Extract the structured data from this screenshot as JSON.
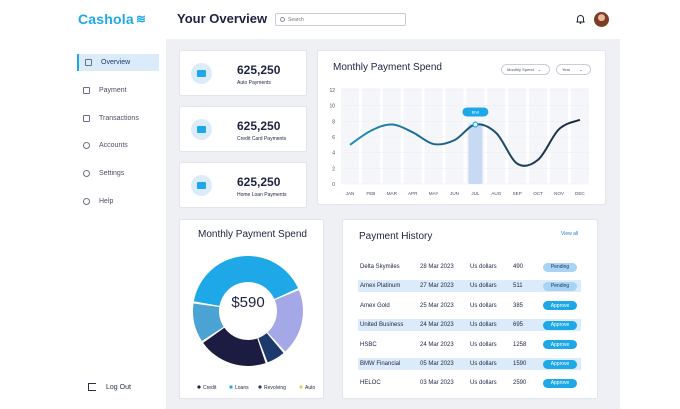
{
  "brand": {
    "name": "Cashola"
  },
  "header": {
    "title": "Your Overview",
    "search_placeholder": "Search"
  },
  "sidebar": {
    "items": [
      {
        "label": "Overview",
        "icon": "overview-icon",
        "active": true
      },
      {
        "label": "Payment",
        "icon": "payment-icon"
      },
      {
        "label": "Transactions",
        "icon": "transactions-icon"
      },
      {
        "label": "Accounts",
        "icon": "accounts-icon"
      },
      {
        "label": "Settings",
        "icon": "settings-icon"
      },
      {
        "label": "Help",
        "icon": "help-icon"
      }
    ],
    "logout": "Log Out"
  },
  "stats": [
    {
      "value": "625,250",
      "label": "Auto Payments"
    },
    {
      "value": "625,250",
      "label": "Credit Card Payments"
    },
    {
      "value": "625,250",
      "label": "Home Loan Payments"
    }
  ],
  "line_chart": {
    "title": "Monthly Payment Spend",
    "filter_1": "Monthly Spend",
    "filter_2": "Year",
    "tooltip": "Bhd"
  },
  "donut": {
    "title": "Monthly Payment Spend",
    "center_value": "$590"
  },
  "history": {
    "title": "Payment History",
    "view_all": "View all",
    "rows": [
      {
        "name": "Delta Skymiles",
        "date": "28 Mar 2023",
        "currency": "Us dollars",
        "amount": "490",
        "status": "Pending"
      },
      {
        "name": "Amex Platinum",
        "date": "27 Mar 2023",
        "currency": "Us dollars",
        "amount": "511",
        "status": "Pending"
      },
      {
        "name": "Amex Gold",
        "date": "25 Mar 2023",
        "currency": "Us dollars",
        "amount": "385",
        "status": "Approve"
      },
      {
        "name": "United Business",
        "date": "24 Mar 2023",
        "currency": "Us dollars",
        "amount": "695",
        "status": "Approve"
      },
      {
        "name": "HSBC",
        "date": "24 Mar 2023",
        "currency": "Us dollars",
        "amount": "1258",
        "status": "Approve"
      },
      {
        "name": "BMW Financial",
        "date": "05 Mar 2023",
        "currency": "Us dollars",
        "amount": "1590",
        "status": "Approve"
      },
      {
        "name": "HELOC",
        "date": "03 Mar 2023",
        "currency": "Us dollars",
        "amount": "2590",
        "status": "Approve"
      }
    ]
  },
  "colors": {
    "accent": "#1fa8e8",
    "navy": "#1c2340",
    "lavender": "#a5a8e6",
    "mid_blue": "#4aa3d2",
    "pending": "#a9d3f2"
  },
  "chart_data": [
    {
      "type": "line",
      "title": "Monthly Payment Spend",
      "categories": [
        "JAN",
        "FEB",
        "MAR",
        "APR",
        "MAY",
        "JUN",
        "JUL",
        "AUG",
        "SEP",
        "OCT",
        "NOV",
        "DEC"
      ],
      "y_ticks": [
        0,
        2,
        4,
        6,
        8,
        10,
        12
      ],
      "ylim": [
        0,
        12
      ],
      "values": [
        5.0,
        6.8,
        7.6,
        6.6,
        5.1,
        5.6,
        7.6,
        6.5,
        2.6,
        3.1,
        7.0,
        8.2
      ],
      "highlight_category": "JUL",
      "grid": true
    },
    {
      "type": "pie",
      "title": "Monthly Payment Spend",
      "labels": [
        "Credit",
        "Loans",
        "Revolving",
        "Auto"
      ],
      "slices": [
        {
          "label": "Credit",
          "value": 41,
          "color": "#1fa8e8"
        },
        {
          "label": "Auto",
          "value": 20,
          "color": "#a5a8e6"
        },
        {
          "label": "Revolving",
          "value": 6,
          "color": "#1c3a6e"
        },
        {
          "label": "Credit",
          "value": 21,
          "color": "#1c1c42"
        },
        {
          "label": "Loans",
          "value": 12,
          "color": "#4aa3d2"
        }
      ],
      "legend": [
        {
          "label": "Credit",
          "color": "#1c2340"
        },
        {
          "label": "Loans",
          "color": "#1fa8e8"
        },
        {
          "label": "Revolving",
          "color": "#1c3a6e"
        },
        {
          "label": "Auto",
          "color": "#e8d24a"
        }
      ],
      "legend_position": "bottom"
    }
  ]
}
